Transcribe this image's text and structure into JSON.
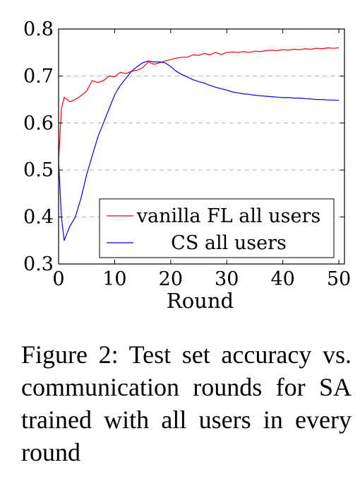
{
  "chart_data": {
    "type": "line",
    "xlabel": "Round",
    "ylabel": "",
    "xlim": [
      0,
      51
    ],
    "ylim": [
      0.3,
      0.8
    ],
    "xticks": [
      0,
      10,
      20,
      30,
      40,
      50
    ],
    "yticks": [
      0.3,
      0.4,
      0.5,
      0.6,
      0.7,
      0.8
    ],
    "xtick_labels": [
      "0",
      "10",
      "20",
      "30",
      "40",
      "50"
    ],
    "ytick_labels": [
      "0.3",
      "0.4",
      "0.5",
      "0.6",
      "0.7",
      "0.8"
    ],
    "grid": "horizontal-dashed",
    "legend_position": "bottom-right",
    "series": [
      {
        "name": "vanilla FL all users",
        "color": "#ff0000",
        "x": [
          0,
          0.5,
          1,
          1.5,
          2,
          3,
          4,
          5,
          6,
          7,
          8,
          9,
          10,
          11,
          12,
          13,
          14,
          15,
          16,
          17,
          18,
          19,
          20,
          21,
          22,
          23,
          24,
          25,
          26,
          27,
          28,
          29,
          30,
          31,
          32,
          33,
          34,
          35,
          36,
          37,
          38,
          39,
          40,
          41,
          42,
          43,
          44,
          45,
          46,
          47,
          48,
          49,
          50
        ],
        "y": [
          0.52,
          0.63,
          0.655,
          0.65,
          0.645,
          0.65,
          0.658,
          0.668,
          0.69,
          0.686,
          0.69,
          0.7,
          0.698,
          0.708,
          0.705,
          0.71,
          0.712,
          0.718,
          0.73,
          0.725,
          0.728,
          0.732,
          0.735,
          0.738,
          0.74,
          0.74,
          0.745,
          0.744,
          0.748,
          0.745,
          0.75,
          0.746,
          0.75,
          0.751,
          0.75,
          0.752,
          0.75,
          0.753,
          0.752,
          0.754,
          0.755,
          0.754,
          0.756,
          0.755,
          0.757,
          0.756,
          0.758,
          0.757,
          0.759,
          0.758,
          0.76,
          0.759,
          0.76
        ]
      },
      {
        "name": "CS all users",
        "color": "#0000ff",
        "x": [
          0,
          0.5,
          1,
          1.5,
          2,
          3,
          4,
          5,
          6,
          7,
          8,
          9,
          10,
          11,
          12,
          13,
          14,
          15,
          16,
          17,
          18,
          19,
          20,
          21,
          22,
          23,
          24,
          25,
          26,
          27,
          28,
          29,
          30,
          31,
          32,
          33,
          34,
          35,
          36,
          37,
          38,
          39,
          40,
          41,
          42,
          43,
          44,
          45,
          46,
          47,
          48,
          49,
          50
        ],
        "y": [
          0.52,
          0.4,
          0.35,
          0.365,
          0.38,
          0.4,
          0.44,
          0.49,
          0.53,
          0.57,
          0.6,
          0.63,
          0.66,
          0.68,
          0.695,
          0.71,
          0.72,
          0.728,
          0.732,
          0.73,
          0.73,
          0.728,
          0.72,
          0.71,
          0.703,
          0.698,
          0.692,
          0.688,
          0.685,
          0.68,
          0.676,
          0.673,
          0.67,
          0.666,
          0.664,
          0.662,
          0.661,
          0.659,
          0.658,
          0.657,
          0.656,
          0.655,
          0.654,
          0.654,
          0.653,
          0.653,
          0.652,
          0.651,
          0.65,
          0.65,
          0.649,
          0.649,
          0.648
        ]
      }
    ]
  },
  "caption": "Figure 2: Test set accuracy vs. communication rounds for SA trained with all users in every round"
}
